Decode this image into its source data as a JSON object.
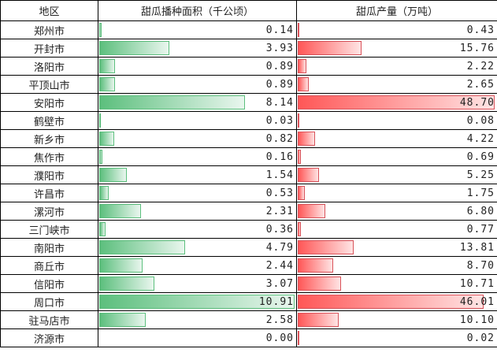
{
  "chart_data": {
    "type": "table",
    "columns": [
      "地区",
      "甜瓜播种面积（千公顷）",
      "甜瓜产量（万吨）"
    ],
    "rows": [
      {
        "region": "郑州市",
        "area": "0.14",
        "output": "0.43"
      },
      {
        "region": "开封市",
        "area": "3.93",
        "output": "15.76"
      },
      {
        "region": "洛阳市",
        "area": "0.89",
        "output": "2.22"
      },
      {
        "region": "平顶山市",
        "area": "0.89",
        "output": "2.65"
      },
      {
        "region": "安阳市",
        "area": "8.14",
        "output": "48.70"
      },
      {
        "region": "鹤壁市",
        "area": "0.03",
        "output": "0.08"
      },
      {
        "region": "新乡市",
        "area": "0.82",
        "output": "4.22"
      },
      {
        "region": "焦作市",
        "area": "0.16",
        "output": "0.69"
      },
      {
        "region": "濮阳市",
        "area": "1.54",
        "output": "5.25"
      },
      {
        "region": "许昌市",
        "area": "0.53",
        "output": "1.75"
      },
      {
        "region": "漯河市",
        "area": "2.31",
        "output": "6.80"
      },
      {
        "region": "三门峡市",
        "area": "0.36",
        "output": "0.77"
      },
      {
        "region": "南阳市",
        "area": "4.79",
        "output": "13.81"
      },
      {
        "region": "商丘市",
        "area": "2.44",
        "output": "8.70"
      },
      {
        "region": "信阳市",
        "area": "3.07",
        "output": "10.71"
      },
      {
        "region": "周口市",
        "area": "10.91",
        "output": "46.01"
      },
      {
        "region": "驻马店市",
        "area": "2.58",
        "output": "10.10"
      },
      {
        "region": "济源市",
        "area": "0.00",
        "output": "0.02"
      }
    ],
    "bar_colors": {
      "area": "#5cbf7d",
      "output": "#ff5757"
    }
  }
}
